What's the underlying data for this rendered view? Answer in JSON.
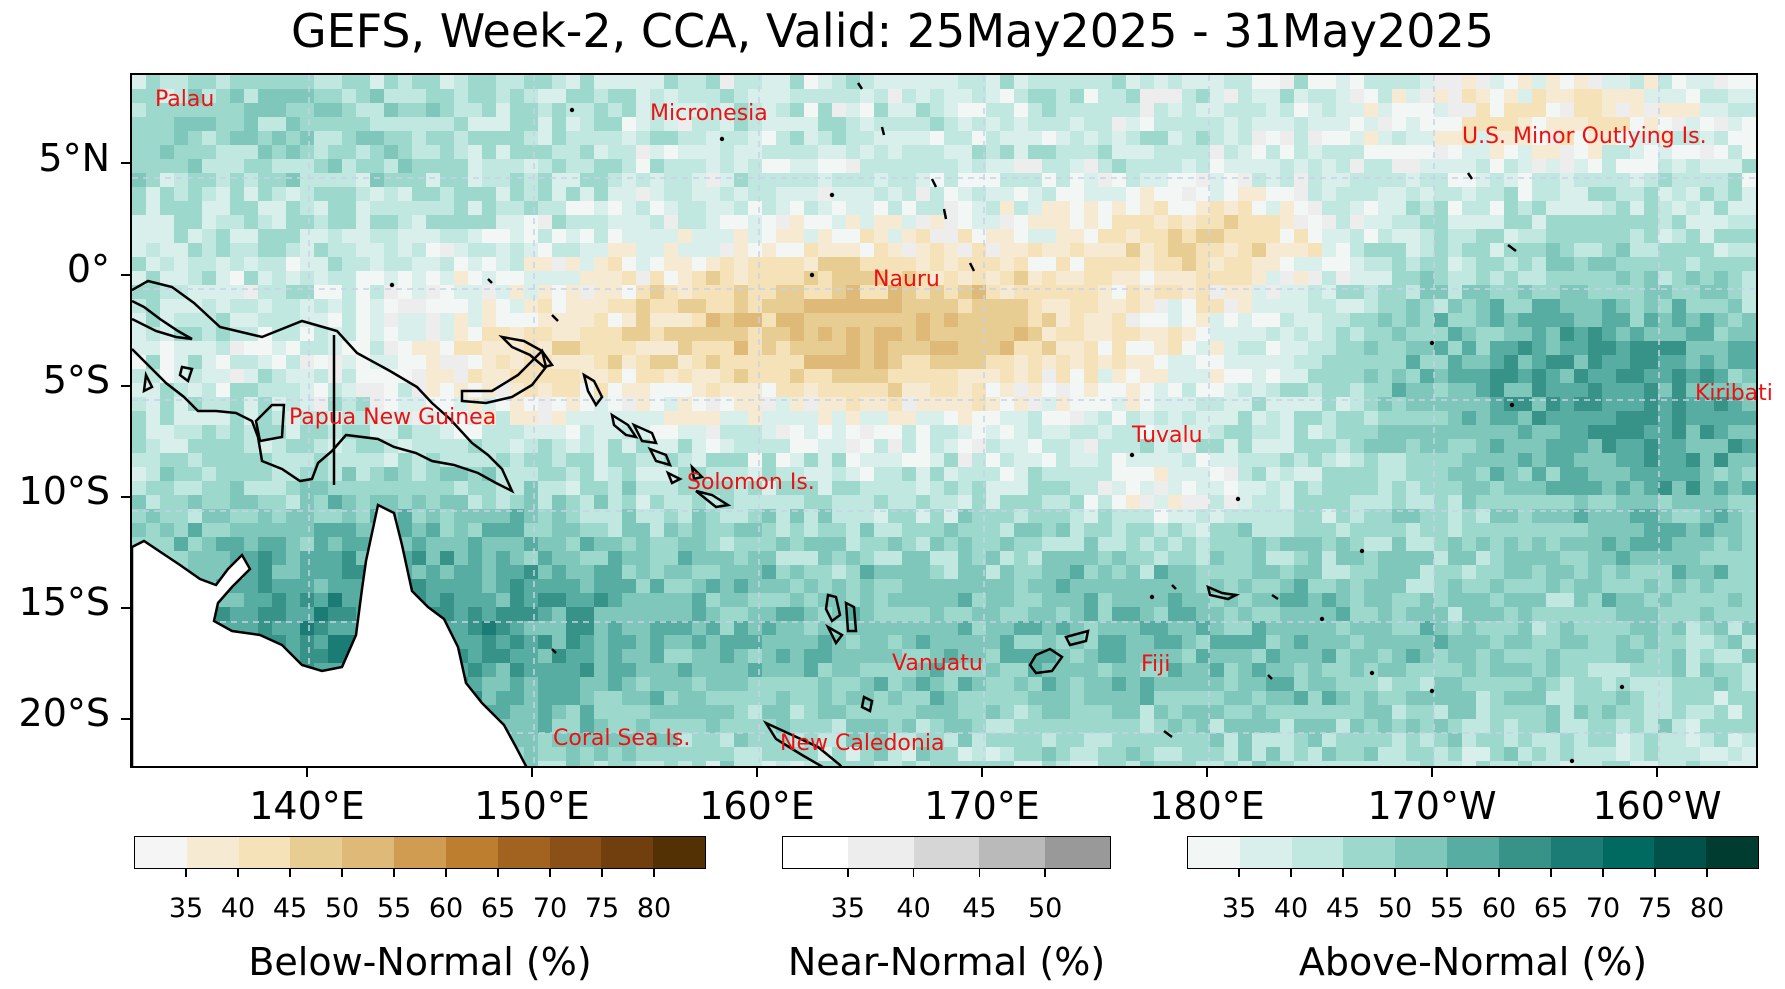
{
  "title": "GEFS, Week-2, CCA, Valid: 25May2025 - 31May2025",
  "map": {
    "lat_ticks": [
      "5°N",
      "0°",
      "5°S",
      "10°S",
      "15°S",
      "20°S"
    ],
    "lon_ticks": [
      "140°E",
      "150°E",
      "160°E",
      "170°E",
      "180°E",
      "170°W",
      "160°W"
    ],
    "colors": {
      "land_mask": "#ffffff",
      "coastline": "#000000",
      "gridline": "#c8d2e6",
      "label_color": "#ee1111"
    },
    "places": [
      "Palau",
      "Micronesia",
      "U.S. Minor Outlying Is.",
      "Nauru",
      "Kiribati",
      "Papua New Guinea",
      "Tuvalu",
      "Solomon Is.",
      "Vanuatu",
      "Fiji",
      "Coral Sea Is.",
      "New Caledonia"
    ]
  },
  "colorbars": [
    {
      "label": "Below-Normal (%)",
      "ticks": [
        "35",
        "40",
        "45",
        "50",
        "55",
        "60",
        "65",
        "70",
        "75",
        "80"
      ],
      "colors": [
        "#f5f5f5",
        "#f6ead2",
        "#f5e2b8",
        "#e8cd92",
        "#dfb977",
        "#cf9c52",
        "#bd7f2f",
        "#a1631f",
        "#8a5017",
        "#713f0d",
        "#543005"
      ]
    },
    {
      "label": "Near-Normal (%)",
      "ticks": [
        "35",
        "40",
        "45",
        "50"
      ],
      "colors": [
        "#ffffff",
        "#ededed",
        "#d6d6d6",
        "#bababa",
        "#999999"
      ]
    },
    {
      "label": "Above-Normal (%)",
      "ticks": [
        "35",
        "40",
        "45",
        "50",
        "55",
        "60",
        "65",
        "70",
        "75",
        "80"
      ],
      "colors": [
        "#f2f7f6",
        "#d9efeb",
        "#c0e8e0",
        "#9dd8cd",
        "#7ec7ba",
        "#58ada2",
        "#379288",
        "#1a7c74",
        "#006960",
        "#00524a",
        "#003c30"
      ]
    }
  ]
}
